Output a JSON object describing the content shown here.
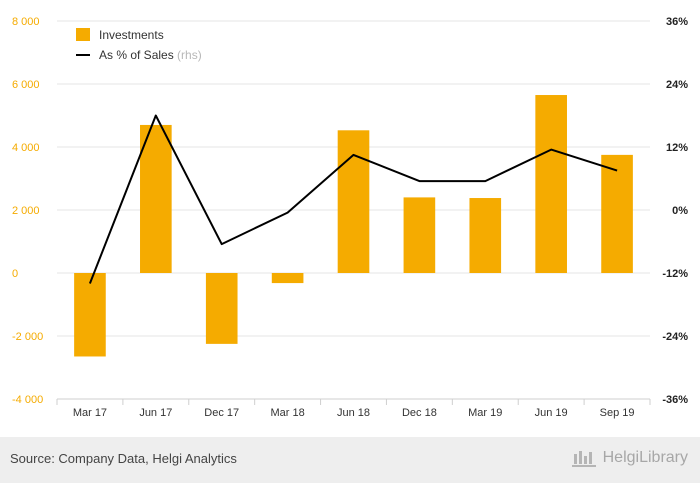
{
  "chart_data": {
    "type": "bar",
    "categories": [
      "Mar 17",
      "Jun 17",
      "Dec 17",
      "Mar 18",
      "Jun 18",
      "Dec 18",
      "Mar 19",
      "Jun 19",
      "Sep 19"
    ],
    "series": [
      {
        "name": "Investments",
        "type": "bar",
        "axis": "left",
        "color": "#f5ab00",
        "values": [
          -2650,
          4700,
          -2250,
          -320,
          4530,
          2400,
          2380,
          5650,
          3750
        ]
      },
      {
        "name": "As % of Sales",
        "type": "line",
        "axis": "right",
        "color": "#000000",
        "values": [
          -14.0,
          18.0,
          -6.5,
          -0.5,
          10.5,
          5.5,
          5.5,
          11.5,
          7.5
        ]
      }
    ],
    "legend_rhs_suffix": "(rhs)",
    "ylim_left": [
      -4000,
      8000
    ],
    "yticks_left": [
      "-4 000",
      "-2 000",
      "0",
      "2 000",
      "4 000",
      "6 000",
      "8 000"
    ],
    "ylim_right": [
      -36,
      36
    ],
    "yticks_right": [
      "-36%",
      "-24%",
      "-12%",
      "0%",
      "12%",
      "24%",
      "36%"
    ],
    "grid": true,
    "legend_position": "top-left"
  },
  "footer": {
    "source": "Source: Company Data, Helgi Analytics",
    "brand": "HelgiLibrary"
  }
}
